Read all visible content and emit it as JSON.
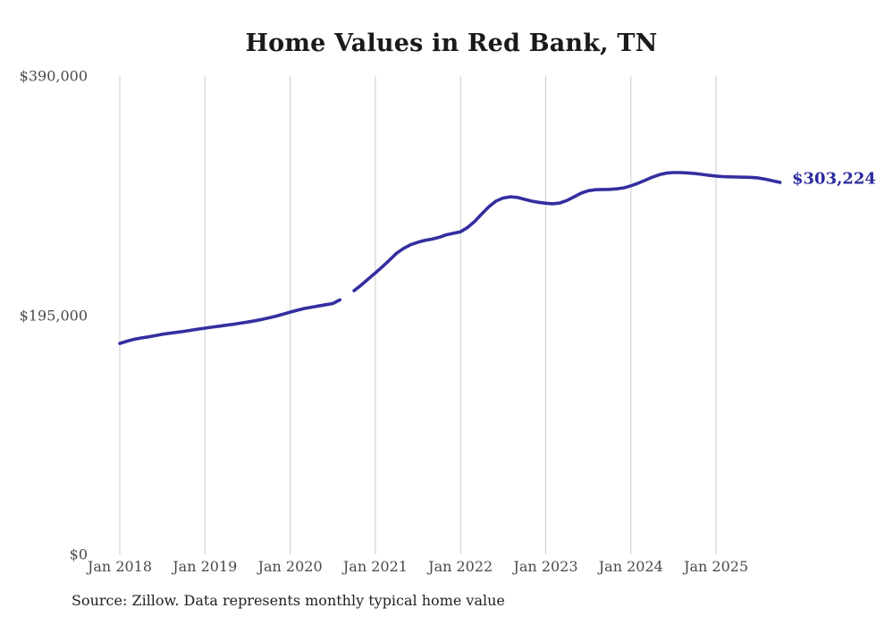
{
  "title": "Home Values in Red Bank, TN",
  "source_note": "Source: Zillow. Data represents monthly typical home value",
  "end_label": "$303,224",
  "colors": {
    "line": "#332f9f",
    "end_label": "#2b2a9e",
    "grid": "#cccccc",
    "axis_text": "#4a4a4a",
    "title_text": "#1a1a1a",
    "source_text": "#222222",
    "background": "#ffffff"
  },
  "chart_data": {
    "type": "line",
    "title": "Home Values in Red Bank, TN",
    "series_name": "Typical home value (USD, monthly)",
    "xlabel": "",
    "ylabel": "",
    "ylim": [
      0,
      390000
    ],
    "grid": "vertical-only",
    "legend": "none",
    "y_ticks": [
      0,
      195000,
      390000
    ],
    "y_tick_labels": [
      "$0",
      "$195,000",
      "$390,000"
    ],
    "x_tick_labels": [
      "Jan 2018",
      "Jan 2019",
      "Jan 2020",
      "Jan 2021",
      "Jan 2022",
      "Jan 2023",
      "Jan 2024",
      "Jan 2025"
    ],
    "x_tick_month_indices": [
      0,
      12,
      24,
      36,
      48,
      60,
      72,
      84
    ],
    "data_gap_months": [
      "2020-09"
    ],
    "latest_value": 303224,
    "latest_value_label": "$303,224",
    "months": [
      "2018-01",
      "2018-02",
      "2018-03",
      "2018-04",
      "2018-05",
      "2018-06",
      "2018-07",
      "2018-08",
      "2018-09",
      "2018-10",
      "2018-11",
      "2018-12",
      "2019-01",
      "2019-02",
      "2019-03",
      "2019-04",
      "2019-05",
      "2019-06",
      "2019-07",
      "2019-08",
      "2019-09",
      "2019-10",
      "2019-11",
      "2019-12",
      "2020-01",
      "2020-02",
      "2020-03",
      "2020-04",
      "2020-05",
      "2020-06",
      "2020-07",
      "2020-08",
      "2020-09",
      "2020-10",
      "2020-11",
      "2020-12",
      "2021-01",
      "2021-02",
      "2021-03",
      "2021-04",
      "2021-05",
      "2021-06",
      "2021-07",
      "2021-08",
      "2021-09",
      "2021-10",
      "2021-11",
      "2021-12",
      "2022-01",
      "2022-02",
      "2022-03",
      "2022-04",
      "2022-05",
      "2022-06",
      "2022-07",
      "2022-08",
      "2022-09",
      "2022-10",
      "2022-11",
      "2022-12",
      "2023-01",
      "2023-02",
      "2023-03",
      "2023-04",
      "2023-05",
      "2023-06",
      "2023-07",
      "2023-08",
      "2023-09",
      "2023-10",
      "2023-11",
      "2023-12",
      "2024-01",
      "2024-02",
      "2024-03",
      "2024-04",
      "2024-05",
      "2024-06",
      "2024-07",
      "2024-08",
      "2024-09",
      "2024-10",
      "2024-11",
      "2024-12",
      "2025-01",
      "2025-02",
      "2025-03",
      "2025-04",
      "2025-05",
      "2025-06",
      "2025-07",
      "2025-08",
      "2025-09",
      "2025-10"
    ],
    "values": [
      172000,
      173800,
      175300,
      176400,
      177300,
      178300,
      179500,
      180300,
      181000,
      181800,
      182700,
      183600,
      184400,
      185200,
      186000,
      186800,
      187600,
      188500,
      189400,
      190400,
      191500,
      192800,
      194200,
      195800,
      197500,
      199000,
      200500,
      201500,
      202500,
      203500,
      204500,
      207500,
      null,
      215000,
      219500,
      224500,
      229500,
      234500,
      240000,
      245500,
      249500,
      252500,
      254500,
      256000,
      257000,
      258500,
      260500,
      261800,
      263000,
      266500,
      271500,
      277500,
      283500,
      288000,
      290500,
      291500,
      291000,
      289500,
      288000,
      287000,
      286300,
      285800,
      286500,
      288500,
      291500,
      294500,
      296500,
      297300,
      297500,
      297600,
      298000,
      298800,
      300500,
      302500,
      305000,
      307500,
      309500,
      310800,
      311300,
      311300,
      311000,
      310500,
      309800,
      309000,
      308400,
      308000,
      307800,
      307600,
      307500,
      307300,
      306800,
      305800,
      304500,
      303224
    ]
  }
}
